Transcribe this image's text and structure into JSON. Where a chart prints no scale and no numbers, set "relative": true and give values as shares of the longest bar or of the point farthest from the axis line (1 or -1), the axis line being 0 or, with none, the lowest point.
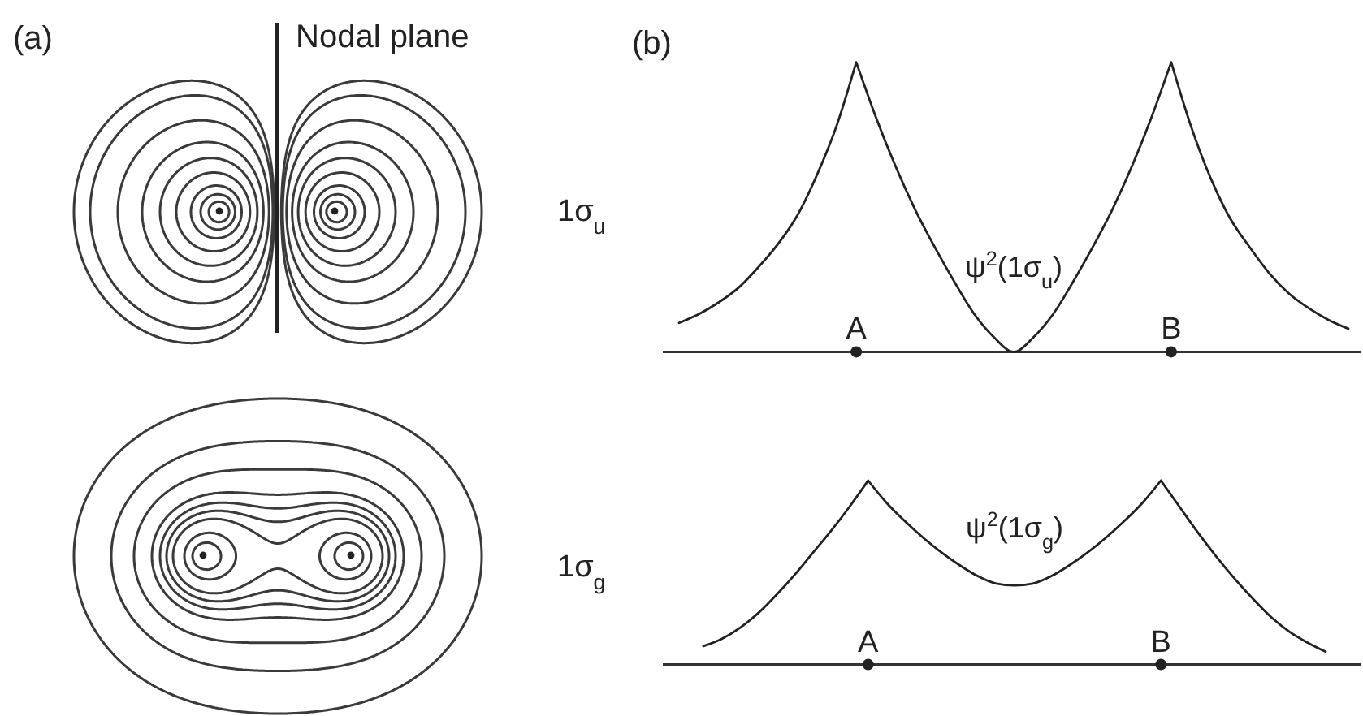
{
  "chart_data": [
    {
      "type": "other",
      "title": "(a)",
      "annotations": [
        "Nodal plane",
        "1σ$_{u}$",
        "1σ$_{g}$"
      ]
    },
    {
      "type": "line",
      "title": "(b)",
      "relative": true,
      "categories": [
        null,
        null,
        null,
        null,
        null,
        null,
        null,
        null,
        null,
        "A",
        null,
        null,
        null,
        null,
        null,
        null,
        null,
        null,
        null,
        null,
        null,
        null,
        null,
        null,
        null,
        "B",
        null,
        null,
        null,
        null,
        null,
        null,
        null,
        null,
        null
      ],
      "series": [
        {
          "name": "ψ$^{2}$(1σ$_{u}$)",
          "color": "#222222",
          "values": [
            0.1,
            0.13,
            0.17,
            0.22,
            0.29,
            0.37,
            0.47,
            0.61,
            0.78,
            1,
            0.81,
            0.64,
            0.49,
            0.36,
            0.24,
            0.13,
            0.05,
            0,
            0.05,
            0.13,
            0.24,
            0.36,
            0.49,
            0.64,
            0.81,
            1,
            0.78,
            0.6,
            0.46,
            0.36,
            0.27,
            0.2,
            0.15,
            0.11,
            0.08
          ]
        },
        {
          "type": "scatter",
          "marker": "circle",
          "color": "#222222",
          "values": [
            null,
            null,
            null,
            null,
            null,
            null,
            null,
            null,
            null,
            0,
            null,
            null,
            null,
            null,
            null,
            null,
            null,
            null,
            null,
            null,
            null,
            null,
            null,
            null,
            null,
            0,
            null,
            null,
            null,
            null,
            null,
            null,
            null,
            null,
            null
          ]
        }
      ]
    },
    {
      "type": "line",
      "relative": true,
      "categories": [
        null,
        null,
        null,
        null,
        null,
        null,
        null,
        null,
        null,
        "A",
        null,
        null,
        null,
        null,
        null,
        null,
        null,
        null,
        null,
        null,
        null,
        null,
        null,
        null,
        null,
        "B",
        null,
        null,
        null,
        null,
        null,
        null,
        null,
        null,
        null
      ],
      "series": [
        {
          "name": "ψ$^{2}$(1σ$_{g}$)",
          "color": "#222222",
          "values": [
            0.1,
            0.14,
            0.2,
            0.28,
            0.38,
            0.49,
            0.61,
            0.73,
            0.86,
            1,
            0.88,
            0.78,
            0.69,
            0.61,
            0.54,
            0.48,
            0.44,
            0.43,
            0.44,
            0.48,
            0.54,
            0.61,
            0.69,
            0.78,
            0.88,
            1,
            0.86,
            0.72,
            0.59,
            0.47,
            0.36,
            0.26,
            0.18,
            0.12,
            0.07
          ]
        },
        {
          "type": "scatter",
          "marker": "circle",
          "color": "#222222",
          "values": [
            null,
            null,
            null,
            null,
            null,
            null,
            null,
            null,
            null,
            0,
            null,
            null,
            null,
            null,
            null,
            null,
            null,
            null,
            null,
            null,
            null,
            null,
            null,
            null,
            null,
            0,
            null,
            null,
            null,
            null,
            null,
            null,
            null,
            null,
            null
          ]
        }
      ]
    }
  ]
}
